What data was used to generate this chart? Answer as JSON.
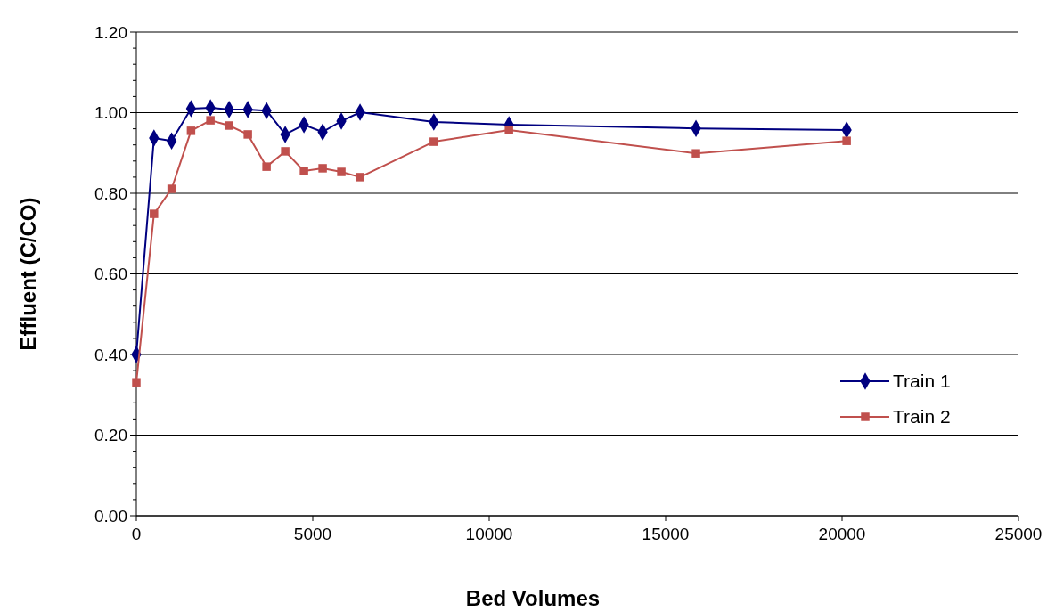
{
  "chart_data": {
    "type": "line",
    "xlabel": "Bed Volumes",
    "ylabel": "Effluent (C/CO)",
    "xlim": [
      0,
      25000
    ],
    "xticks": [
      0,
      5000,
      10000,
      15000,
      20000,
      25000
    ],
    "ylim": [
      0,
      1.2
    ],
    "yticks": [
      {
        "value": 0,
        "label": "0.00"
      },
      {
        "value": 0.04,
        "label": null
      },
      {
        "value": 0.08,
        "label": null
      },
      {
        "value": 0.12,
        "label": null
      },
      {
        "value": 0.16,
        "label": null
      },
      {
        "value": 0.2,
        "label": "0.20"
      },
      {
        "value": 0.24,
        "label": null
      },
      {
        "value": 0.28,
        "label": null
      },
      {
        "value": 0.32,
        "label": null
      },
      {
        "value": 0.36,
        "label": null
      },
      {
        "value": 0.4,
        "label": "0.40"
      },
      {
        "value": 0.44,
        "label": null
      },
      {
        "value": 0.48,
        "label": null
      },
      {
        "value": 0.52,
        "label": null
      },
      {
        "value": 0.56,
        "label": null
      },
      {
        "value": 0.6,
        "label": "0.60"
      },
      {
        "value": 0.64,
        "label": null
      },
      {
        "value": 0.68,
        "label": null
      },
      {
        "value": 0.72,
        "label": null
      },
      {
        "value": 0.76,
        "label": null
      },
      {
        "value": 0.8,
        "label": "0.80"
      },
      {
        "value": 0.84,
        "label": null
      },
      {
        "value": 0.88,
        "label": null
      },
      {
        "value": 0.92,
        "label": null
      },
      {
        "value": 0.96,
        "label": null
      },
      {
        "value": 1.0,
        "label": "1.00"
      },
      {
        "value": 1.04,
        "label": null
      },
      {
        "value": 1.08,
        "label": null
      },
      {
        "value": 1.12,
        "label": null
      },
      {
        "value": 1.16,
        "label": null
      },
      {
        "value": 1.2,
        "label": "1.20"
      }
    ],
    "grid": "y",
    "legend": "right",
    "series": [
      {
        "name": "Train 1",
        "color": "#000080",
        "marker": "diamond",
        "x": [
          0,
          500,
          1000,
          1550,
          2100,
          2630,
          3160,
          3690,
          4220,
          4750,
          5280,
          5810,
          6340,
          8430,
          10560,
          15860,
          20130
        ],
        "values": [
          0.4,
          0.937,
          0.93,
          1.01,
          1.012,
          1.008,
          1.008,
          1.005,
          0.946,
          0.97,
          0.952,
          0.979,
          1.001,
          0.977,
          0.97,
          0.961,
          0.957
        ]
      },
      {
        "name": "Train 2",
        "color": "#c0504d",
        "marker": "square",
        "x": [
          0,
          500,
          1000,
          1550,
          2100,
          2630,
          3160,
          3690,
          4220,
          4750,
          5280,
          5810,
          6340,
          8430,
          10560,
          15860,
          20130
        ],
        "values": [
          0.331,
          0.749,
          0.811,
          0.955,
          0.981,
          0.968,
          0.946,
          0.866,
          0.904,
          0.855,
          0.862,
          0.853,
          0.84,
          0.928,
          0.957,
          0.899,
          0.93
        ]
      }
    ]
  }
}
